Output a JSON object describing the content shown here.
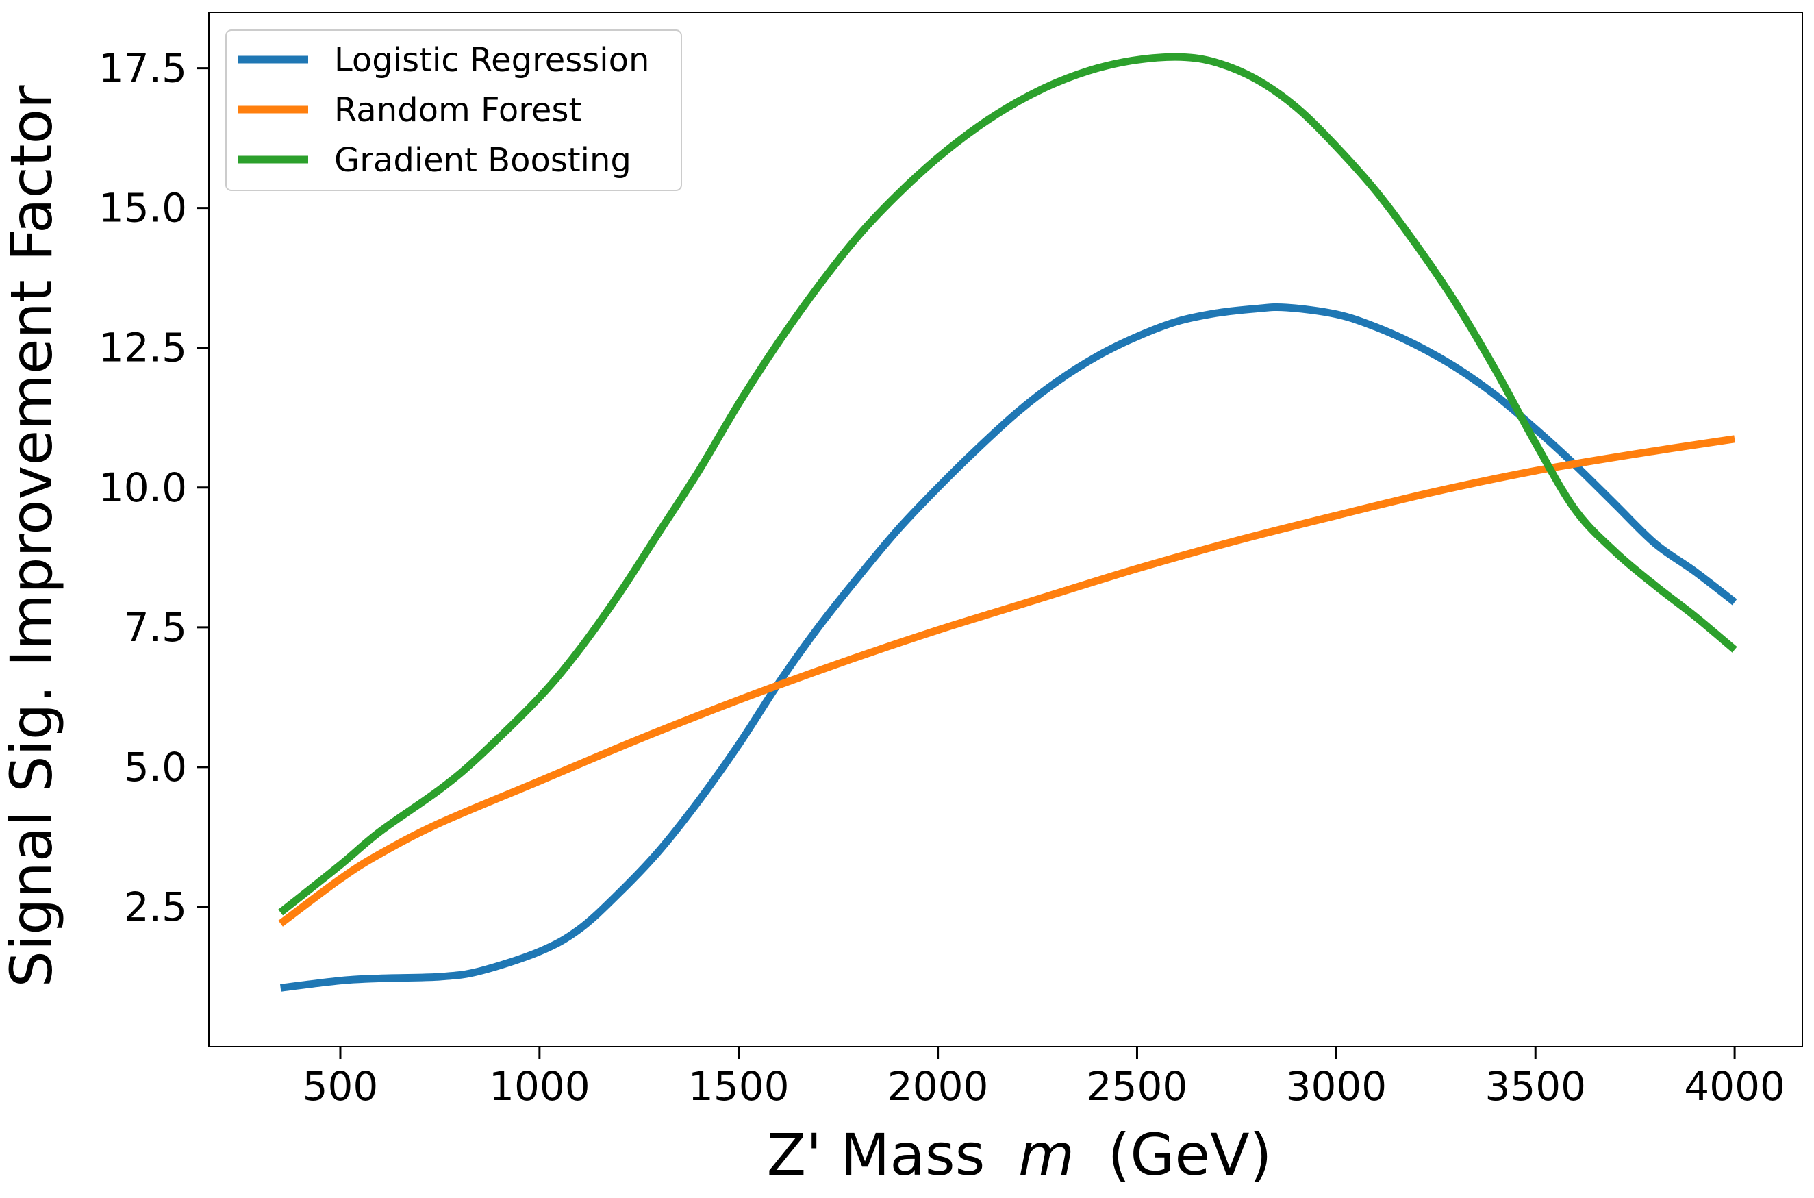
{
  "chart_data": {
    "type": "line",
    "title": "",
    "xlabel": "Z' Mass",
    "xlabel_var": "m",
    "xlabel_unit": "(GeV)",
    "ylabel": "Signal Sig. Improvement Factor",
    "xlim": [
      170,
      4170
    ],
    "ylim": [
      0,
      18.5
    ],
    "xticks": [
      500,
      1000,
      1500,
      2000,
      2500,
      3000,
      3500,
      4000
    ],
    "xtick_labels": [
      "500",
      "1000",
      "1500",
      "2000",
      "2500",
      "3000",
      "3500",
      "4000"
    ],
    "yticks": [
      2.5,
      5.0,
      7.5,
      10.0,
      12.5,
      15.0,
      17.5
    ],
    "ytick_labels": [
      "2.5",
      "5.0",
      "7.5",
      "10.0",
      "12.5",
      "15.0",
      "17.5"
    ],
    "grid": false,
    "legend_position": "top-left",
    "series": [
      {
        "name": "Logistic Regression",
        "color": "#1f77b4",
        "x": [
          350,
          500,
          600,
          750,
          850,
          1000,
          1100,
          1200,
          1300,
          1400,
          1500,
          1600,
          1700,
          1800,
          1900,
          2000,
          2100,
          2200,
          2300,
          2400,
          2500,
          2600,
          2700,
          2800,
          2875,
          3000,
          3100,
          3200,
          3300,
          3400,
          3500,
          3600,
          3700,
          3800,
          3900,
          4000
        ],
        "y": [
          1.05,
          1.18,
          1.22,
          1.25,
          1.35,
          1.7,
          2.1,
          2.75,
          3.5,
          4.4,
          5.4,
          6.5,
          7.5,
          8.4,
          9.25,
          10.0,
          10.7,
          11.35,
          11.9,
          12.35,
          12.7,
          12.97,
          13.12,
          13.2,
          13.22,
          13.1,
          12.87,
          12.55,
          12.15,
          11.65,
          11.05,
          10.4,
          9.7,
          9.0,
          8.5,
          7.95
        ]
      },
      {
        "name": "Random Forest",
        "color": "#ff7f0e",
        "x": [
          350,
          500,
          600,
          750,
          1000,
          1250,
          1500,
          1750,
          2000,
          2250,
          2500,
          2750,
          3000,
          3250,
          3500,
          3750,
          4000
        ],
        "y": [
          2.2,
          3.0,
          3.45,
          4.0,
          4.75,
          5.5,
          6.2,
          6.85,
          7.45,
          8.0,
          8.55,
          9.05,
          9.5,
          9.93,
          10.3,
          10.6,
          10.87
        ]
      },
      {
        "name": "Gradient Boosting",
        "color": "#2ca02c",
        "x": [
          350,
          500,
          600,
          750,
          850,
          1000,
          1100,
          1200,
          1300,
          1400,
          1500,
          1600,
          1700,
          1800,
          1900,
          2000,
          2100,
          2200,
          2300,
          2400,
          2500,
          2610,
          2700,
          2800,
          2900,
          3000,
          3100,
          3200,
          3300,
          3400,
          3500,
          3600,
          3700,
          3800,
          3900,
          4000
        ],
        "y": [
          2.4,
          3.25,
          3.85,
          4.6,
          5.2,
          6.25,
          7.1,
          8.1,
          9.2,
          10.3,
          11.5,
          12.6,
          13.6,
          14.5,
          15.25,
          15.9,
          16.45,
          16.9,
          17.25,
          17.5,
          17.65,
          17.7,
          17.6,
          17.3,
          16.8,
          16.1,
          15.3,
          14.35,
          13.3,
          12.1,
          10.8,
          9.6,
          8.85,
          8.25,
          7.7,
          7.1
        ]
      }
    ]
  }
}
